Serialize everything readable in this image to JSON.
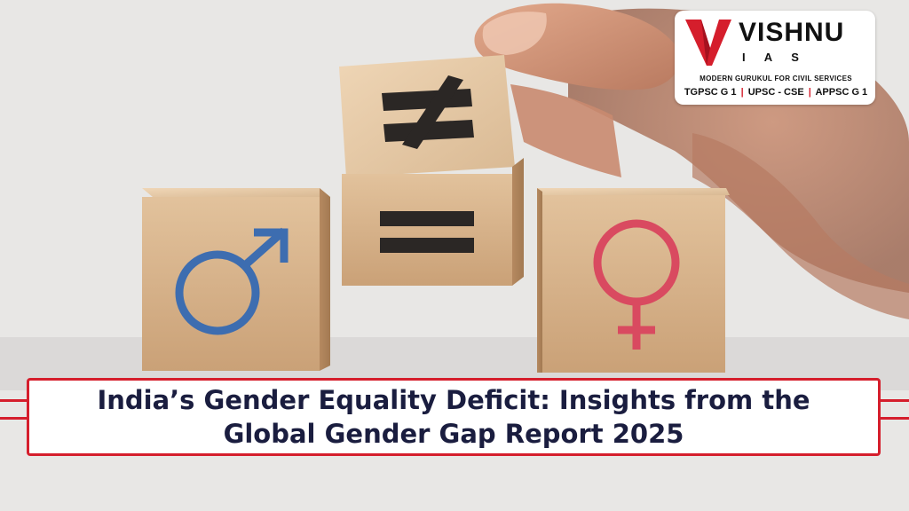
{
  "branding": {
    "name": "VISHNU",
    "sub": "I A S",
    "tagline": "MODERN GURUKUL FOR CIVIL SERVICES",
    "exams": [
      "TGPSC G 1",
      "UPSC - CSE",
      "APPSC G 1"
    ],
    "separator": "|"
  },
  "title": {
    "line1": "India’s Gender Equality Deficit: Insights from the",
    "line2": "Global Gender Gap Report 2025"
  },
  "symbols": {
    "left_cube": "male-symbol",
    "top_cube_front": "equals-sign",
    "top_cube_top": "not-equal-sign",
    "right_cube": "female-symbol"
  },
  "colors": {
    "accent": "#d51e2c",
    "title_text": "#1a1d3f",
    "male_symbol": "#3d6db0",
    "female_symbol": "#d94a60",
    "wood": "#d9b48a"
  }
}
